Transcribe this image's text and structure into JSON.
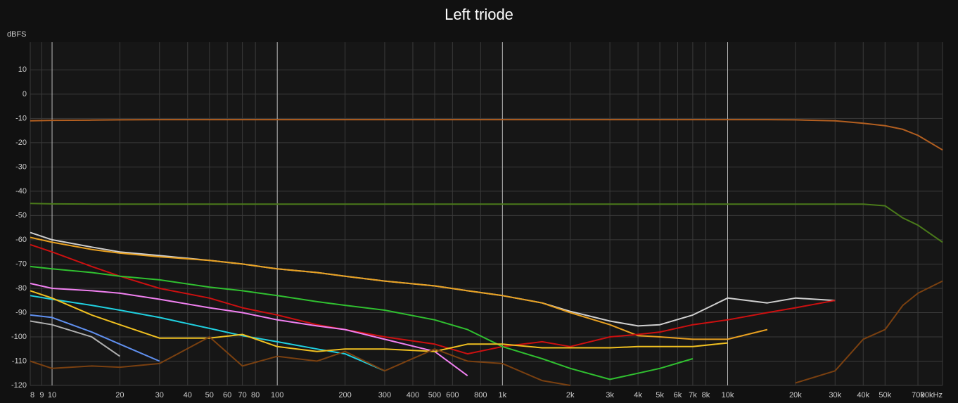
{
  "chart_data": {
    "type": "line",
    "title": "Left triode",
    "y_label": "dBFS",
    "log_x": true,
    "grid": true,
    "xlim": [
      8,
      90000
    ],
    "ylim": [
      -120,
      21.4
    ],
    "xticks": [
      8,
      9,
      10,
      20,
      30,
      40,
      50,
      60,
      70,
      80,
      100,
      200,
      300,
      400,
      500,
      600,
      800,
      {
        "value": 1000,
        "label": "1k"
      },
      {
        "value": 2000,
        "label": "2k"
      },
      {
        "value": 3000,
        "label": "3k"
      },
      {
        "value": 4000,
        "label": "4k"
      },
      {
        "value": 5000,
        "label": "5k"
      },
      {
        "value": 6000,
        "label": "6k"
      },
      {
        "value": 7000,
        "label": "7k"
      },
      {
        "value": 8000,
        "label": "8k"
      },
      {
        "value": 10000,
        "label": "10k"
      },
      {
        "value": 20000,
        "label": "20k"
      },
      {
        "value": 30000,
        "label": "30k"
      },
      {
        "value": 40000,
        "label": "40k"
      },
      {
        "value": 50000,
        "label": "50k"
      },
      {
        "value": 70000,
        "label": "70k"
      },
      {
        "value": 90000,
        "label": "90kHz"
      }
    ],
    "yticks": [
      10,
      0,
      -10,
      -20,
      -30,
      -40,
      -50,
      -60,
      -70,
      -80,
      -90,
      -100,
      -110,
      -120
    ],
    "x": [
      8,
      10,
      15,
      20,
      30,
      50,
      70,
      100,
      150,
      200,
      300,
      500,
      700,
      1000,
      1500,
      2000,
      3000,
      4000,
      5000,
      7000,
      10000,
      15000,
      20000,
      30000,
      40000,
      50000,
      60000,
      70000,
      90000
    ],
    "series": [
      {
        "color": "#b35f20",
        "values": [
          -11,
          -10.8,
          -10.7,
          -10.6,
          -10.5,
          -10.5,
          -10.5,
          -10.5,
          -10.5,
          -10.5,
          -10.5,
          -10.5,
          -10.5,
          -10.5,
          -10.5,
          -10.5,
          -10.5,
          -10.5,
          -10.5,
          -10.5,
          -10.5,
          -10.5,
          -10.6,
          -11,
          -12,
          -13,
          -14.5,
          -17,
          -23
        ]
      },
      {
        "color": "#4a7a1a",
        "values": [
          -45,
          -45.2,
          -45.3,
          -45.3,
          -45.3,
          -45.3,
          -45.3,
          -45.3,
          -45.3,
          -45.3,
          -45.3,
          -45.3,
          -45.3,
          -45.3,
          -45.3,
          -45.3,
          -45.3,
          -45.3,
          -45.3,
          -45.3,
          -45.3,
          -45.3,
          -45.3,
          -45.3,
          -45.3,
          -46,
          -51,
          -54,
          -61
        ]
      },
      {
        "color": "#d0d0d0",
        "values": [
          -57,
          -60,
          -63,
          -65,
          -66.5,
          -68.5,
          -70,
          -72,
          -73.5,
          -75,
          -77,
          -79,
          -81,
          -83,
          -86,
          -89.5,
          -93.5,
          -95.5,
          -95,
          -91,
          -84,
          -86,
          -84,
          -85,
          null,
          null,
          null,
          null,
          null
        ]
      },
      {
        "color": "#e8a020",
        "values": [
          -59,
          -61,
          -64,
          -65.5,
          -67,
          -68.5,
          -70,
          -72,
          -73.5,
          -75,
          -77,
          -79,
          -81,
          -83,
          -86,
          -90,
          -95,
          -99.5,
          -100,
          -101,
          -101,
          -97,
          null,
          null,
          null,
          null,
          null,
          null,
          null
        ]
      },
      {
        "color": "#cc1010",
        "values": [
          -62,
          -65,
          -71,
          -75,
          -80,
          -84,
          -88,
          -91,
          -95,
          -97,
          -100,
          -103,
          -107,
          -104,
          -102,
          -104,
          -100,
          -99,
          -98,
          -95,
          -93,
          -90,
          -88,
          -85,
          null,
          null,
          null,
          null,
          null
        ]
      },
      {
        "color": "#30c030",
        "values": [
          -71,
          -72,
          -73.5,
          -75,
          -76.5,
          -79.5,
          -81,
          -83,
          -85.5,
          -87,
          -89,
          -93,
          -97,
          -104,
          -109,
          -113,
          -117.5,
          -115,
          -113,
          -109,
          null,
          null,
          null,
          null,
          null,
          null,
          null,
          null,
          null
        ]
      },
      {
        "color": "#f080f0",
        "values": [
          -78,
          -80,
          -81,
          -82,
          -84.5,
          -88,
          -90,
          -93,
          -95.5,
          -97,
          -101,
          -106,
          -116,
          null,
          null,
          null,
          null,
          null,
          null,
          null,
          null,
          null,
          null,
          null,
          null,
          null,
          null,
          null,
          null
        ]
      },
      {
        "color": "#20d0e0",
        "values": [
          -83,
          -84.5,
          -87,
          -89,
          -92,
          -96.5,
          -99.5,
          -102,
          -105,
          -107,
          -114,
          null,
          null,
          null,
          null,
          null,
          null,
          null,
          null,
          null,
          null,
          null,
          null,
          null,
          null,
          null,
          null,
          null,
          null
        ]
      },
      {
        "color": "#f0c020",
        "values": [
          -81,
          -84,
          -91,
          -95,
          -100.5,
          -100.5,
          -99,
          -104,
          -106,
          -105,
          -105,
          -106,
          -103,
          -103,
          -104.5,
          -104.5,
          -104.5,
          -104,
          -104,
          -104,
          -102.5,
          null,
          null,
          null,
          null,
          null,
          null,
          null,
          null
        ]
      },
      {
        "color": "#6090f0",
        "values": [
          -91,
          -92,
          -98,
          -103,
          -110,
          null,
          null,
          null,
          null,
          null,
          null,
          null,
          null,
          null,
          null,
          null,
          null,
          null,
          null,
          null,
          null,
          null,
          null,
          null,
          null,
          null,
          null,
          null,
          null
        ]
      },
      {
        "color": "#b0b0b0",
        "values": [
          -93.5,
          -95,
          -100,
          -108,
          null,
          null,
          null,
          null,
          null,
          null,
          null,
          null,
          null,
          null,
          null,
          null,
          null,
          null,
          null,
          null,
          null,
          null,
          null,
          null,
          null,
          null,
          null,
          null,
          null
        ]
      },
      {
        "color": "#7a4010",
        "values": [
          -110,
          -113,
          -112,
          -112.5,
          -111,
          -100,
          -112,
          -108,
          -110,
          -106,
          -114,
          -105,
          -110,
          -111,
          -118,
          -120,
          null,
          null,
          null,
          null,
          null,
          null,
          -119,
          -114,
          -101,
          -97,
          -87,
          -82,
          -77
        ]
      }
    ]
  }
}
